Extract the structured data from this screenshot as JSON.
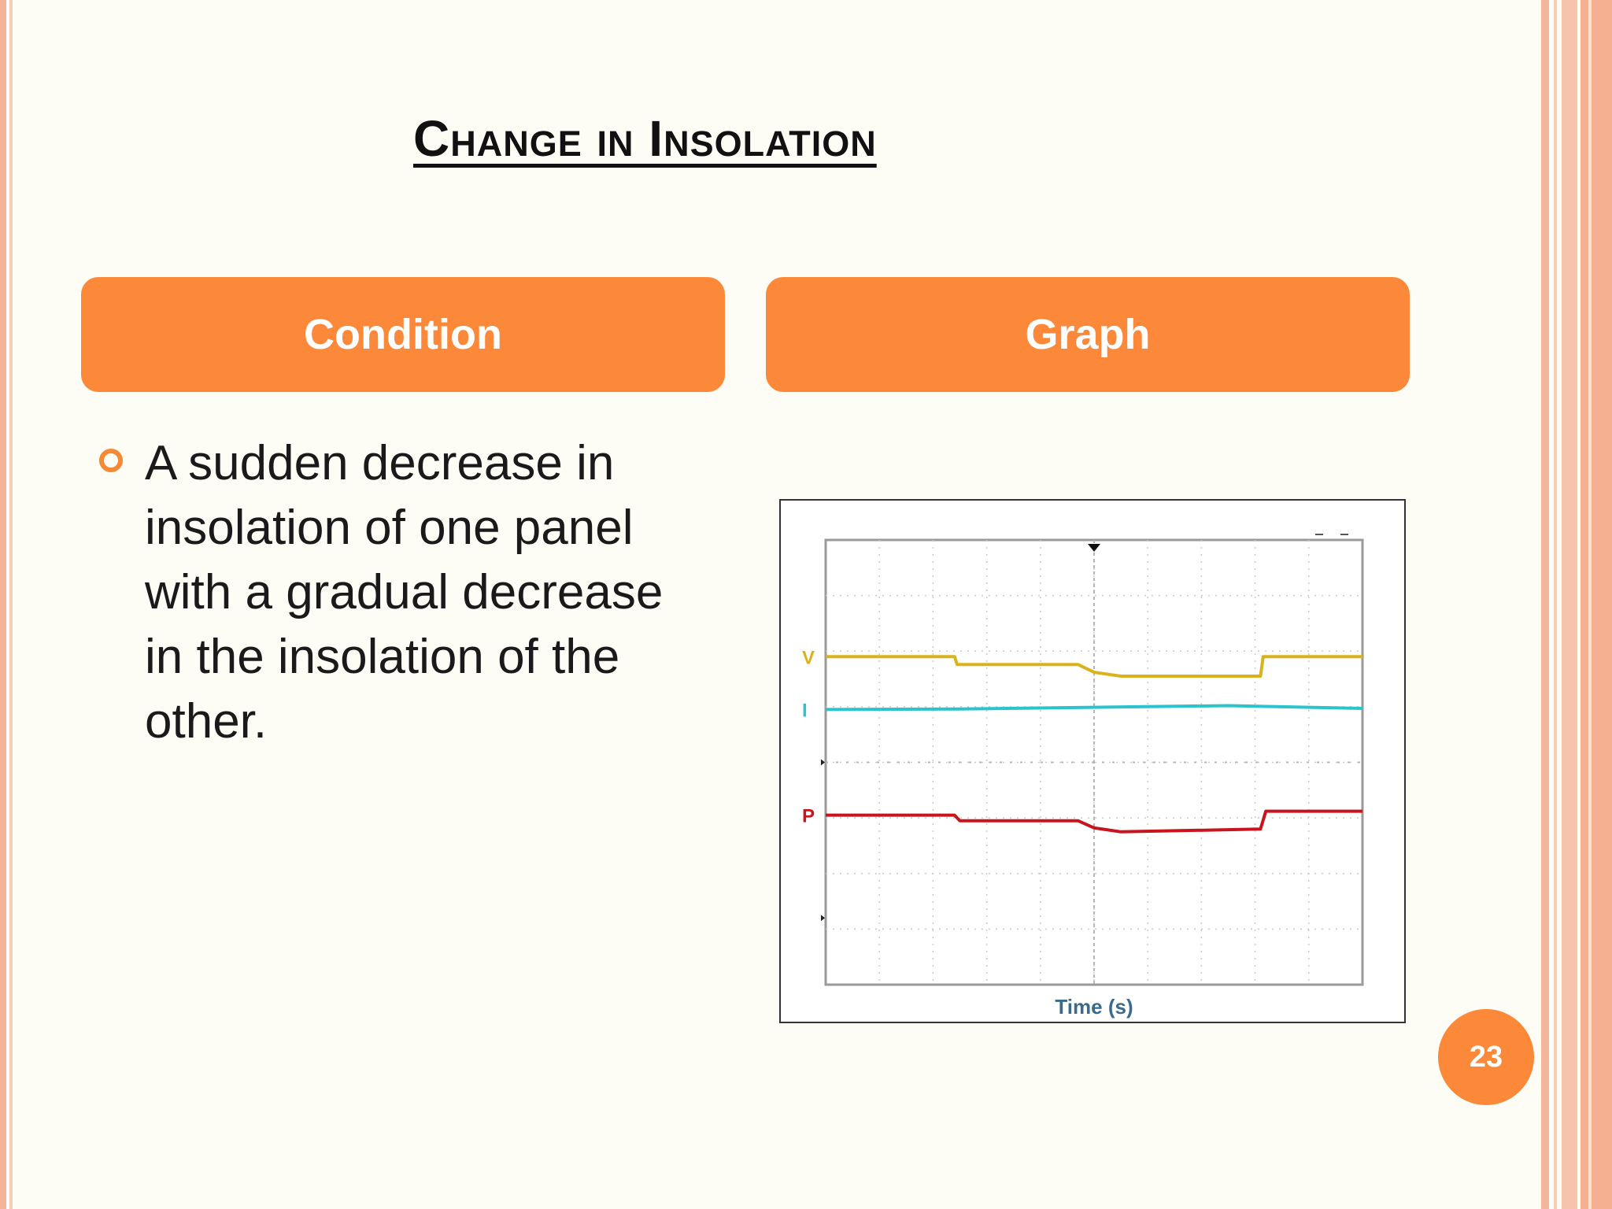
{
  "slide": {
    "title": "Change in Insolation",
    "page_number": "23",
    "accent_color": "#fc883a"
  },
  "table": {
    "headers": [
      "Condition",
      "Graph"
    ],
    "condition_text": "A sudden decrease in insolation of one panel with a gradual decrease in the insolation of the other."
  },
  "chart_data": {
    "type": "line",
    "xlabel": "Time (s)",
    "ylabel": "",
    "grid": true,
    "x_divisions": 10,
    "y_divisions": 8,
    "xlim": [
      0,
      10
    ],
    "ylim": [
      0,
      8
    ],
    "series": [
      {
        "name": "V",
        "color": "#d9b21c",
        "x": [
          0,
          2.4,
          2.45,
          4.7,
          5.0,
          5.5,
          8.1,
          8.15,
          10
        ],
        "values": [
          5.9,
          5.9,
          5.76,
          5.76,
          5.62,
          5.55,
          5.55,
          5.9,
          5.9
        ]
      },
      {
        "name": "I",
        "color": "#2cc4cc",
        "x": [
          0,
          2.5,
          5.0,
          7.5,
          10
        ],
        "values": [
          4.95,
          4.96,
          4.99,
          5.02,
          4.97
        ]
      },
      {
        "name": "P",
        "color": "#c8141c",
        "x": [
          0,
          2.4,
          2.5,
          4.7,
          5.0,
          5.5,
          8.1,
          8.2,
          10
        ],
        "values": [
          3.05,
          3.05,
          2.95,
          2.95,
          2.82,
          2.75,
          2.8,
          3.12,
          3.12
        ]
      }
    ]
  }
}
